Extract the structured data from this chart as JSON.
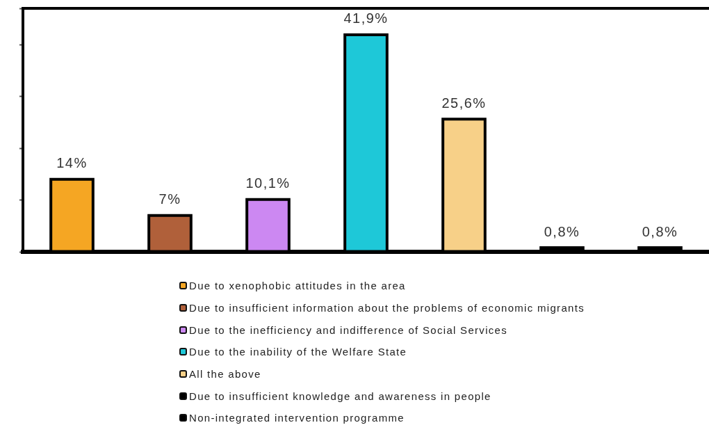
{
  "chart_data": {
    "type": "bar",
    "stacked": true,
    "categories": [
      null,
      null,
      null,
      null,
      null,
      null,
      null
    ],
    "series": [
      {
        "name": "Due to xenophobic attitudes in the area",
        "color": "#f5a623",
        "values": [
          14,
          null,
          null,
          null,
          null,
          null,
          null
        ],
        "value_labels": [
          "14%",
          null,
          null,
          null,
          null,
          null,
          null
        ]
      },
      {
        "name": "Due to insufficient information about the problems of economic migrants",
        "color": "#b0603a",
        "values": [
          null,
          7,
          null,
          null,
          null,
          null,
          null
        ],
        "value_labels": [
          null,
          "7%",
          null,
          null,
          null,
          null,
          null
        ]
      },
      {
        "name": "Due to the inefficiency and indifference of Social Services",
        "color": "#cc88f2",
        "values": [
          null,
          null,
          10.1,
          null,
          null,
          null,
          null
        ],
        "value_labels": [
          null,
          null,
          "10,1%",
          null,
          null,
          null,
          null
        ]
      },
      {
        "name": "Due to the inability of the Welfare State",
        "color": "#1ec8d8",
        "values": [
          null,
          null,
          null,
          41.9,
          null,
          null,
          null
        ],
        "value_labels": [
          null,
          null,
          null,
          "41,9%",
          null,
          null,
          null
        ]
      },
      {
        "name": "All the above",
        "color": "#f7d088",
        "values": [
          null,
          null,
          null,
          null,
          25.6,
          null,
          null
        ],
        "value_labels": [
          null,
          null,
          null,
          null,
          "25,6%",
          null,
          null
        ]
      },
      {
        "name": "Due to insufficient knowledge and awareness in people",
        "color": "#000000",
        "values": [
          null,
          null,
          null,
          null,
          null,
          0.8,
          null
        ],
        "value_labels": [
          null,
          null,
          null,
          null,
          null,
          "0,8%",
          null
        ]
      },
      {
        "name": "Non-integrated intervention programme",
        "color": "#000000",
        "values": [
          null,
          null,
          null,
          null,
          null,
          null,
          0.8
        ],
        "value_labels": [
          null,
          null,
          null,
          null,
          null,
          null,
          "0,8%"
        ]
      }
    ],
    "ylim": [
      0,
      47
    ],
    "legend": "bottom"
  }
}
